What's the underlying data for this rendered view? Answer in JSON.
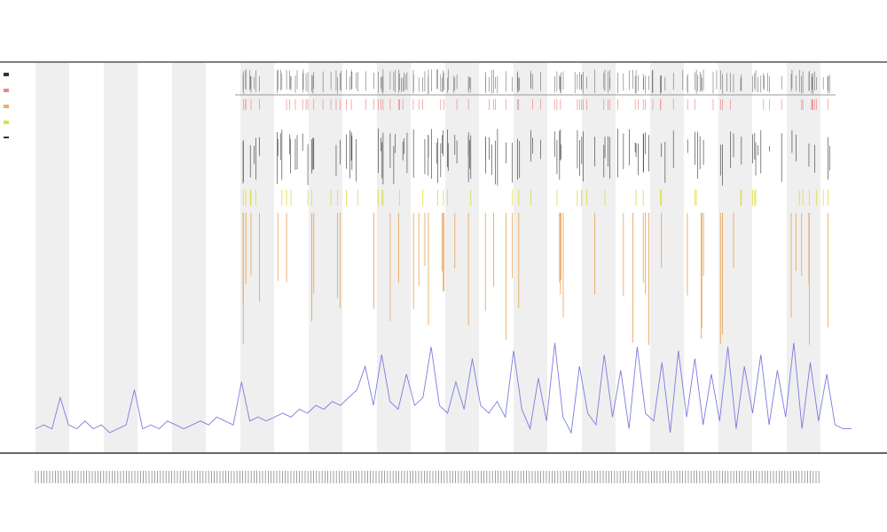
{
  "chart_data": {
    "type": "line",
    "ylim": [
      0,
      100
    ],
    "series": [
      {
        "color": "#7b7be0",
        "values": [
          6,
          7,
          6,
          14,
          7,
          6,
          8,
          6,
          7,
          5,
          6,
          7,
          16,
          6,
          7,
          6,
          8,
          7,
          6,
          7,
          8,
          7,
          9,
          8,
          7,
          18,
          8,
          9,
          8,
          9,
          10,
          9,
          11,
          10,
          12,
          11,
          13,
          12,
          14,
          16,
          22,
          12,
          25,
          13,
          11,
          20,
          12,
          14,
          27,
          12,
          10,
          18,
          11,
          24,
          12,
          10,
          13,
          9,
          26,
          11,
          6,
          19,
          8,
          28,
          9,
          5,
          22,
          10,
          7,
          25,
          9,
          21,
          6,
          27,
          10,
          8,
          23,
          5,
          26,
          9,
          24,
          7,
          20,
          8,
          27,
          6,
          22,
          10,
          25,
          7,
          21,
          9,
          28,
          6,
          23,
          8,
          20,
          7,
          6,
          6
        ]
      }
    ]
  }
}
